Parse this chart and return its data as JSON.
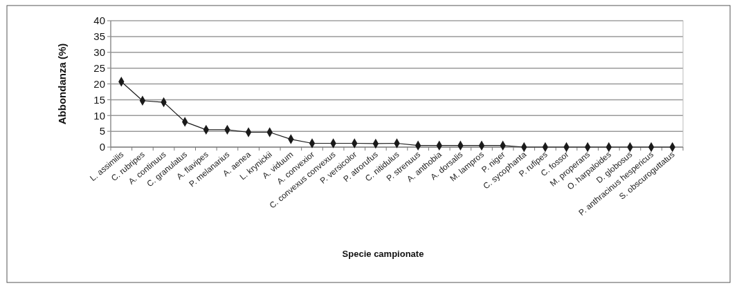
{
  "chart_data": {
    "type": "line",
    "xlabel": "Specie campionate",
    "ylabel": "Abbondanza (%)",
    "categories": [
      "L. assimilis",
      "C. rubripes",
      "A. continuus",
      "C. granulatus",
      "A. flavipes",
      "P. melanarius",
      "A. aenea",
      "L. krynickii",
      "A. viduum",
      "A. convexior",
      "C. convexus  convexus",
      "P. versicolor",
      "P. atrorufus",
      "C. nitidulus",
      "P. strenuus",
      "A. anthobia",
      "A. dorsalis",
      "M. lampros",
      "P. niger",
      "C. sycophanta",
      "P. rufipes",
      "C. fossor",
      "M. properans",
      "O. harpaloides",
      "D. globosus",
      "P. anthracinus hespericus",
      "S. obscuroguttatus"
    ],
    "series": [
      {
        "color": "#1a1a1a",
        "values": [
          20.7,
          14.7,
          14.2,
          8,
          5.5,
          5.5,
          4.7,
          4.7,
          2.5,
          1.2,
          1.2,
          1.2,
          1.1,
          1.2,
          0.5,
          0.5,
          0.5,
          0.5,
          0.5,
          0,
          0,
          0,
          0,
          0,
          0,
          0,
          0
        ]
      }
    ],
    "ylim": [
      0,
      40
    ],
    "yticks": [
      0,
      5,
      10,
      15,
      20,
      25,
      30,
      35,
      40
    ],
    "grid": "y",
    "marker": "diamond",
    "line_style": "solid"
  }
}
